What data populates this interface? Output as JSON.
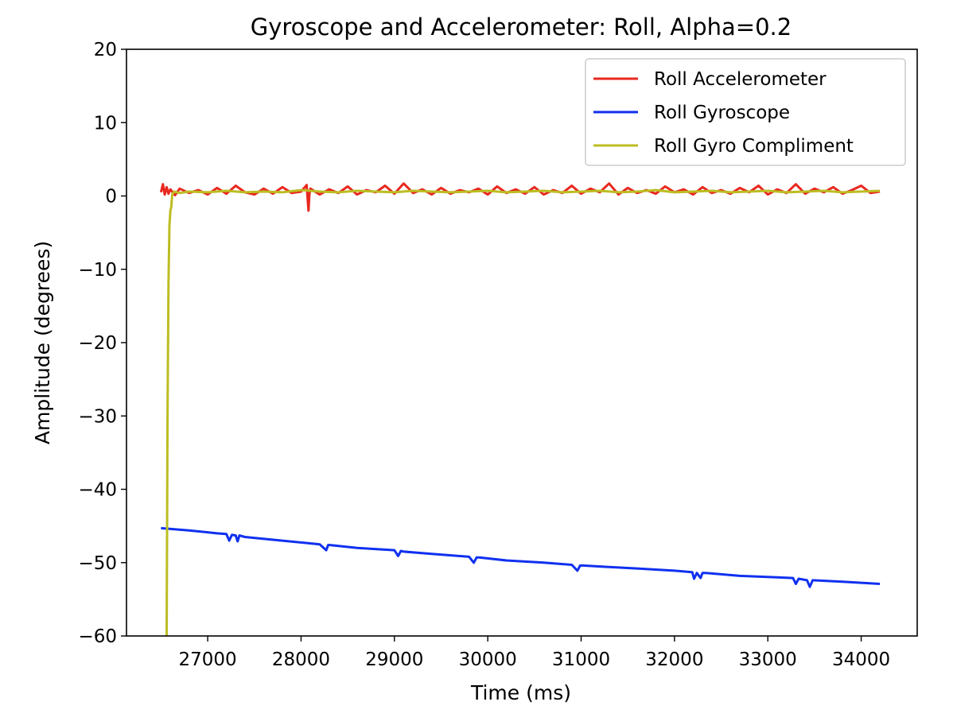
{
  "chart_data": {
    "type": "line",
    "title": "Gyroscope and Accelerometer: Roll, Alpha=0.2",
    "xlabel": "Time (ms)",
    "ylabel": "Amplitude (degrees)",
    "xlim": [
      26130,
      34600
    ],
    "ylim": [
      -60,
      20
    ],
    "xticks": [
      27000,
      28000,
      29000,
      30000,
      31000,
      32000,
      33000,
      34000
    ],
    "yticks": [
      20,
      10,
      0,
      -10,
      -20,
      -30,
      -40,
      -50,
      -60
    ],
    "xtick_labels": [
      "27000",
      "28000",
      "29000",
      "30000",
      "31000",
      "32000",
      "33000",
      "34000"
    ],
    "ytick_labels": [
      "20",
      "10",
      "0",
      "−10",
      "−20",
      "−30",
      "−40",
      "−50",
      "−60"
    ],
    "grid": false,
    "legend_position": "top-right",
    "series": [
      {
        "name": "Roll Accelerometer",
        "color": "#e8281e",
        "x": [
          26500,
          26520,
          26540,
          26560,
          26580,
          26600,
          26650,
          26700,
          26800,
          26900,
          27000,
          27100,
          27200,
          27300,
          27400,
          27500,
          27600,
          27700,
          27800,
          27900,
          28000,
          28060,
          28080,
          28090,
          28100,
          28200,
          28300,
          28400,
          28500,
          28600,
          28700,
          28800,
          28900,
          29000,
          29100,
          29200,
          29300,
          29400,
          29500,
          29600,
          29700,
          29800,
          29900,
          30000,
          30100,
          30200,
          30300,
          30400,
          30500,
          30600,
          30700,
          30800,
          30900,
          31000,
          31100,
          31200,
          31300,
          31400,
          31500,
          31600,
          31700,
          31800,
          31900,
          32000,
          32100,
          32200,
          32300,
          32400,
          32500,
          32600,
          32700,
          32800,
          32900,
          33000,
          33100,
          33200,
          33300,
          33400,
          33500,
          33600,
          33700,
          33800,
          33900,
          34000,
          34100,
          34200
        ],
        "y": [
          0.5,
          1.6,
          0.2,
          1.2,
          0.3,
          0.9,
          0.1,
          1.0,
          0.4,
          0.8,
          0.2,
          1.1,
          0.3,
          1.4,
          0.5,
          0.2,
          1.0,
          0.3,
          1.2,
          0.4,
          0.6,
          1.5,
          -2.0,
          0.3,
          1.0,
          0.2,
          0.9,
          0.4,
          1.3,
          0.2,
          0.8,
          0.5,
          1.4,
          0.3,
          1.7,
          0.4,
          0.9,
          0.2,
          1.1,
          0.3,
          0.8,
          0.5,
          1.0,
          0.2,
          1.3,
          0.4,
          0.9,
          0.3,
          1.2,
          0.2,
          0.8,
          0.4,
          1.4,
          0.3,
          1.0,
          0.5,
          1.7,
          0.2,
          1.1,
          0.4,
          0.8,
          0.3,
          1.3,
          0.5,
          0.9,
          0.2,
          1.2,
          0.4,
          0.8,
          0.3,
          1.1,
          0.5,
          1.4,
          0.2,
          0.9,
          0.4,
          1.6,
          0.3,
          1.0,
          0.5,
          1.2,
          0.3,
          0.8,
          1.4,
          0.4,
          0.6
        ]
      },
      {
        "name": "Roll Gyroscope",
        "color": "#1030f0",
        "x": [
          26500,
          26800,
          27100,
          27200,
          27230,
          27260,
          27300,
          27320,
          27340,
          27400,
          27800,
          28200,
          28270,
          28290,
          28310,
          28600,
          29000,
          29040,
          29070,
          29100,
          29400,
          29800,
          29850,
          29880,
          29910,
          30200,
          30600,
          30900,
          30960,
          30990,
          31020,
          31300,
          31600,
          32000,
          32190,
          32210,
          32240,
          32280,
          32300,
          32330,
          32700,
          33100,
          33270,
          33300,
          33330,
          33420,
          33450,
          33480,
          33800,
          34200
        ],
        "y": [
          -45.3,
          -45.6,
          -46.0,
          -46.1,
          -47.0,
          -46.2,
          -46.3,
          -47.1,
          -46.3,
          -46.5,
          -47.0,
          -47.5,
          -48.3,
          -47.6,
          -47.6,
          -48.0,
          -48.3,
          -49.1,
          -48.4,
          -48.5,
          -48.8,
          -49.2,
          -50.0,
          -49.3,
          -49.3,
          -49.7,
          -50.0,
          -50.3,
          -51.1,
          -50.4,
          -50.4,
          -50.6,
          -50.8,
          -51.1,
          -51.3,
          -52.2,
          -51.4,
          -52.1,
          -51.4,
          -51.4,
          -51.8,
          -52.0,
          -52.1,
          -52.9,
          -52.2,
          -52.4,
          -53.3,
          -52.4,
          -52.6,
          -52.9
        ]
      },
      {
        "name": "Roll Gyro Compliment",
        "color": "#bcbd22",
        "x": [
          26560,
          26570,
          26580,
          26590,
          26600,
          26610,
          26620,
          26640,
          26700,
          26800,
          27000,
          27200,
          27400,
          27600,
          27800,
          28000,
          28200,
          28400,
          28600,
          28800,
          29000,
          29200,
          29400,
          29600,
          29800,
          30000,
          30200,
          30400,
          30600,
          30800,
          31000,
          31200,
          31400,
          31600,
          31800,
          32000,
          32200,
          32400,
          32600,
          32800,
          33000,
          33200,
          33400,
          33600,
          33800,
          34000,
          34200
        ],
        "y": [
          -60,
          -30,
          -12,
          -4,
          -2,
          -1.5,
          0.2,
          0.6,
          0.4,
          0.6,
          0.5,
          0.7,
          0.5,
          0.6,
          0.5,
          0.8,
          0.6,
          0.5,
          0.7,
          0.6,
          0.5,
          0.7,
          0.6,
          0.5,
          0.6,
          0.7,
          0.5,
          0.6,
          0.7,
          0.5,
          0.6,
          0.7,
          0.5,
          0.6,
          0.8,
          0.5,
          0.6,
          0.7,
          0.5,
          0.6,
          0.7,
          0.5,
          0.6,
          0.7,
          0.5,
          0.6,
          0.7
        ]
      }
    ]
  }
}
